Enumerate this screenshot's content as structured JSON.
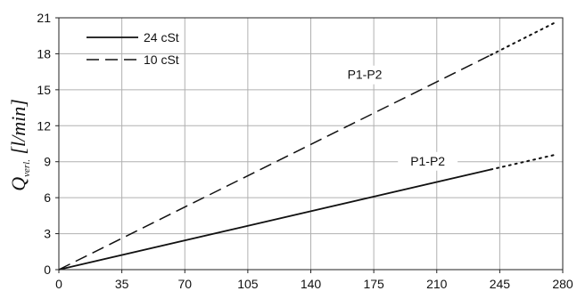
{
  "chart_data": {
    "type": "line",
    "xlim": [
      0,
      280
    ],
    "ylim": [
      0,
      21
    ],
    "x_ticks": [
      0,
      35,
      70,
      105,
      140,
      175,
      210,
      245,
      280
    ],
    "y_ticks": [
      0,
      3,
      6,
      9,
      12,
      15,
      18,
      21
    ],
    "grid": true,
    "ylabel": {
      "main": "Q",
      "sub": "verl.",
      "unit": " [l/min]"
    },
    "xlabel": "",
    "legend": {
      "placement": "top-left"
    },
    "series": [
      {
        "name": "24 cSt",
        "style": "solid",
        "color": "#111111",
        "solid_points": [
          [
            0,
            0
          ],
          [
            240,
            8.35
          ]
        ],
        "extrapolated_points": [
          [
            240,
            8.35
          ],
          [
            275,
            9.55
          ]
        ]
      },
      {
        "name": "10 cSt",
        "style": "dashed",
        "color": "#111111",
        "solid_points": [
          [
            0,
            0
          ],
          [
            240,
            17.9
          ]
        ],
        "extrapolated_points": [
          [
            240,
            17.9
          ],
          [
            275,
            20.55
          ]
        ]
      }
    ],
    "annotations": [
      {
        "text": "P1-P2",
        "x": 170,
        "y": 15.9,
        "target": "10 cSt"
      },
      {
        "text": "P1-P2",
        "x": 205,
        "y": 8.7,
        "target": "24 cSt"
      }
    ]
  }
}
